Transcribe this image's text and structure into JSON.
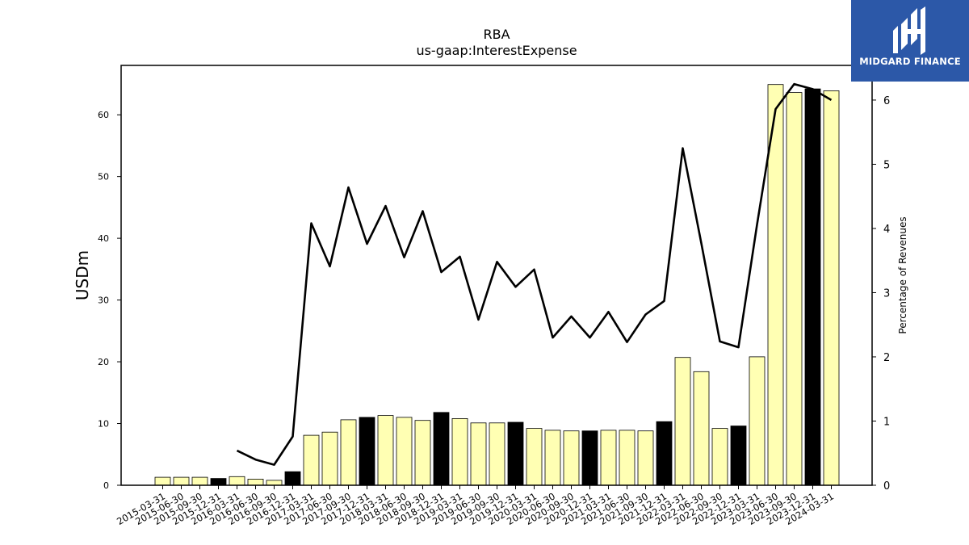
{
  "chart_data": {
    "type": "bar",
    "title": "RBA",
    "subtitle": "us-gaap:InterestExpense",
    "xlabel": "",
    "ylabel": "USDm",
    "y2label": "Percentage of Revenues",
    "ylim": [
      0,
      68
    ],
    "y2lim": [
      0,
      6.54
    ],
    "yticks": [
      0,
      10,
      20,
      30,
      40,
      50,
      60
    ],
    "y2ticks": [
      0,
      1,
      2,
      3,
      4,
      5,
      6
    ],
    "grid": false,
    "categories": [
      "2015-03-31",
      "2015-06-30",
      "2015-09-30",
      "2015-12-31",
      "2016-03-31",
      "2016-06-30",
      "2016-09-30",
      "2016-12-31",
      "2017-03-31",
      "2017-06-30",
      "2017-09-30",
      "2017-12-31",
      "2018-03-31",
      "2018-06-30",
      "2018-09-30",
      "2018-12-31",
      "2019-03-31",
      "2019-06-30",
      "2019-09-30",
      "2019-12-31",
      "2020-03-31",
      "2020-06-30",
      "2020-09-30",
      "2020-12-31",
      "2021-03-31",
      "2021-06-30",
      "2021-09-30",
      "2021-12-31",
      "2022-03-31",
      "2022-06-30",
      "2022-09-30",
      "2022-12-31",
      "2023-03-31",
      "2023-06-30",
      "2023-09-30",
      "2023-12-31",
      "2024-03-31"
    ],
    "series": [
      {
        "kind": "bar",
        "axis": "left",
        "values": [
          1.3,
          1.3,
          1.3,
          1.1,
          1.4,
          1.0,
          0.8,
          2.2,
          8.1,
          8.6,
          10.6,
          11.0,
          11.3,
          11.0,
          10.5,
          11.8,
          10.8,
          10.1,
          10.1,
          10.2,
          9.2,
          8.9,
          8.8,
          8.8,
          8.9,
          8.9,
          8.8,
          10.3,
          20.7,
          18.4,
          9.2,
          9.6,
          20.8,
          64.9,
          63.6,
          64.2,
          63.9
        ],
        "highlight": [
          false,
          false,
          false,
          true,
          false,
          false,
          false,
          true,
          false,
          false,
          false,
          true,
          false,
          false,
          false,
          true,
          false,
          false,
          false,
          true,
          false,
          false,
          false,
          true,
          false,
          false,
          false,
          true,
          false,
          false,
          false,
          true,
          false,
          false,
          false,
          true,
          false
        ]
      },
      {
        "kind": "line",
        "axis": "right",
        "values": [
          null,
          null,
          null,
          null,
          0.54,
          0.4,
          0.32,
          0.76,
          4.08,
          3.41,
          4.64,
          3.76,
          4.35,
          3.55,
          4.27,
          3.32,
          3.56,
          2.58,
          3.48,
          3.09,
          3.36,
          2.3,
          2.63,
          2.3,
          2.7,
          2.23,
          2.66,
          2.87,
          5.25,
          3.77,
          2.24,
          2.15,
          4.06,
          5.86,
          6.25,
          6.17,
          6.0
        ]
      }
    ],
    "colors": {
      "bar": "#ffffb3",
      "bar_highlight": "#000000",
      "bar_edge": "#000000",
      "line": "#000000"
    }
  },
  "logo": {
    "text": "MIDGARD FINANCE",
    "background": "#2c58a8"
  }
}
